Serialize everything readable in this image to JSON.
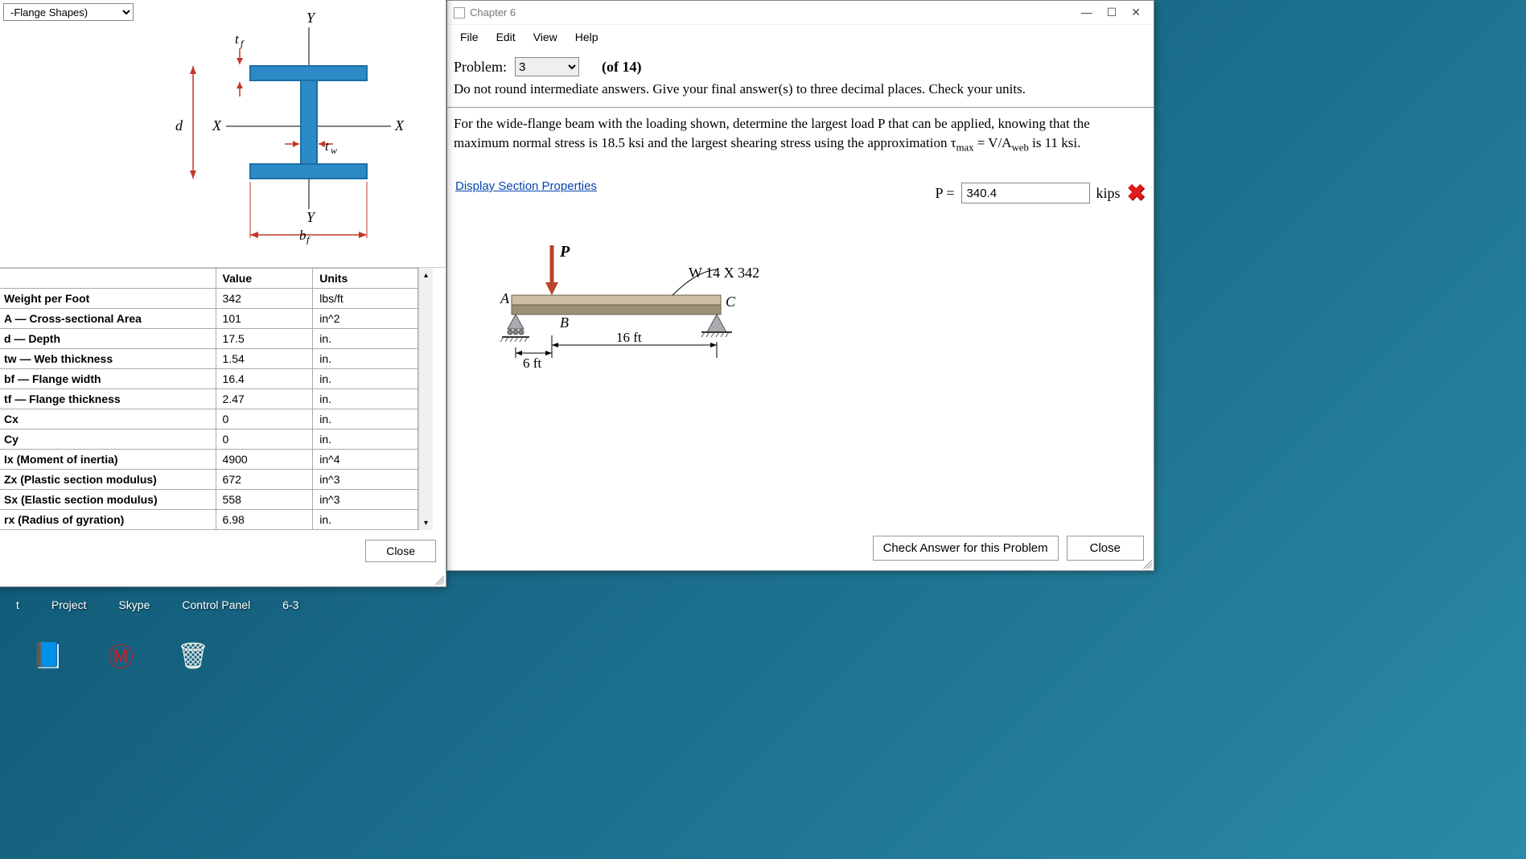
{
  "props_window": {
    "shape_dropdown": "-Flange Shapes)",
    "diagram": {
      "labels": {
        "Y": "Y",
        "X": "X",
        "tf": "t",
        "tw": "t",
        "bf": "b",
        "d": "d",
        "tf_sub": "f",
        "tw_sub": "w",
        "bf_sub": "f"
      },
      "colors": {
        "flange": "#2c8bc7",
        "flange_dark": "#1b6ea6",
        "dim_line": "#c0392b"
      }
    },
    "table": {
      "headers": {
        "value": "Value",
        "units": "Units"
      },
      "rows": [
        {
          "label": "Weight per Foot",
          "value": "342",
          "units": "lbs/ft"
        },
        {
          "label": "A — Cross-sectional Area",
          "value": "101",
          "units": "in^2"
        },
        {
          "label": "d — Depth",
          "value": "17.5",
          "units": "in."
        },
        {
          "label": "tw — Web thickness",
          "value": "1.54",
          "units": "in."
        },
        {
          "label": "bf — Flange width",
          "value": "16.4",
          "units": "in."
        },
        {
          "label": "tf — Flange thickness",
          "value": "2.47",
          "units": "in."
        },
        {
          "label": "Cx",
          "value": "0",
          "units": "in."
        },
        {
          "label": "Cy",
          "value": "0",
          "units": "in."
        },
        {
          "label": "Ix (Moment of inertia)",
          "value": "4900",
          "units": "in^4"
        },
        {
          "label": "Zx (Plastic section modulus)",
          "value": "672",
          "units": "in^3"
        },
        {
          "label": "Sx (Elastic section modulus)",
          "value": "558",
          "units": "in^3"
        },
        {
          "label": "rx (Radius of gyration)",
          "value": "6.98",
          "units": "in."
        }
      ]
    },
    "close_btn": "Close"
  },
  "ch6_window": {
    "title": "Chapter 6",
    "menus": [
      "File",
      "Edit",
      "View",
      "Help"
    ],
    "problem_label": "Problem:",
    "problem_selected": "3",
    "problem_of": "(of 14)",
    "instructions": "Do not round intermediate answers.  Give your final answer(s) to three decimal places.  Check your units.",
    "problem_text_1": "For the wide-flange beam with the loading shown, determine the largest load P that can be applied, knowing that the maximum normal stress is 18.5 ksi and the largest shearing stress using the approximation τ",
    "problem_text_sub1": "max",
    "problem_text_2": " = V/A",
    "problem_text_sub2": "web",
    "problem_text_3": " is 11 ksi.",
    "display_link": "Display Section Properties",
    "answer_label": "P  =",
    "answer_value": "340.4",
    "answer_units": "kips",
    "beam_diagram": {
      "labels": {
        "P": "P",
        "A": "A",
        "B": "B",
        "C": "C",
        "W": "W 14 X 342",
        "d1": "6 ft",
        "d2": "16 ft"
      },
      "colors": {
        "beam_top": "#cdbfa6",
        "beam_bot": "#9c8f78",
        "support": "#7d8187",
        "load_arrow": "#b8442a"
      }
    },
    "check_btn": "Check Answer for this Problem",
    "close_btn": "Close"
  },
  "desktop": {
    "labels": [
      "t",
      "Project",
      "Skype",
      "Control Panel",
      "6-3"
    ]
  }
}
